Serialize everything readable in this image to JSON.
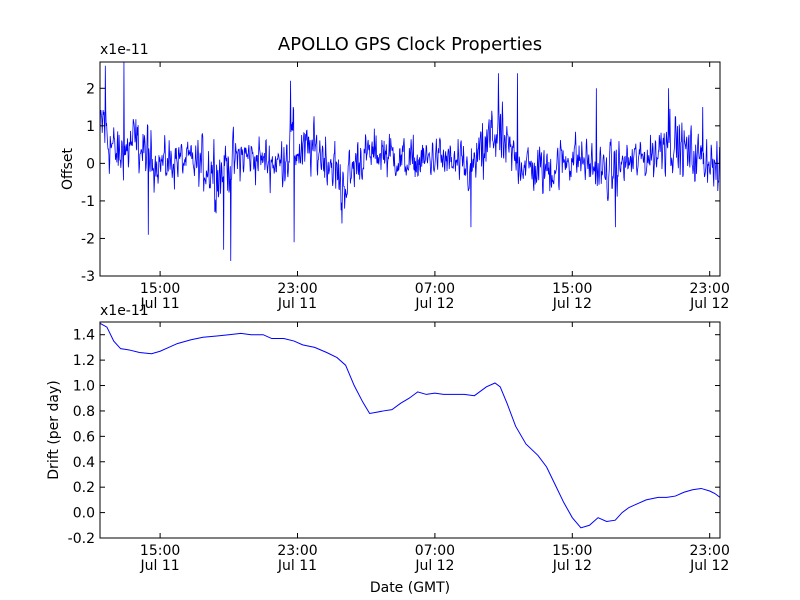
{
  "chart_data": [
    {
      "type": "line",
      "title": "APOLLO GPS Clock Properties",
      "ylabel": "Offset",
      "xlabel": "",
      "scale_label": "x1e-11",
      "x_unit": "hours since Jul 11 00:00 GMT",
      "xlim": [
        11.5,
        47.6
      ],
      "ylim": [
        -3,
        2.7
      ],
      "yticks": [
        "2",
        "1",
        "0",
        "-1",
        "-2",
        "-3"
      ],
      "ytick_values": [
        2,
        1,
        0,
        -1,
        -2,
        -3
      ],
      "xticks": [
        {
          "value": 15,
          "time": "15:00",
          "date": "Jul 11"
        },
        {
          "value": 23,
          "time": "23:00",
          "date": "Jul 11"
        },
        {
          "value": 31,
          "time": "07:00",
          "date": "Jul 12"
        },
        {
          "value": 39,
          "time": "15:00",
          "date": "Jul 12"
        },
        {
          "value": 47,
          "time": "23:00",
          "date": "Jul 12"
        }
      ],
      "color": "#0000ff",
      "noise_series": true,
      "envelope": {
        "x": [
          11.5,
          11.7,
          12.0,
          12.5,
          13.0,
          13.5,
          14.0,
          15.0,
          16.0,
          17.0,
          18.0,
          18.5,
          19.0,
          20.0,
          21.0,
          22.0,
          22.7,
          23.0,
          24.0,
          25.0,
          25.5,
          26.0,
          26.5,
          27.0,
          28.0,
          29.0,
          30.0,
          31.0,
          32.0,
          33.0,
          34.0,
          34.5,
          35.0,
          35.5,
          36.0,
          37.0,
          38.0,
          39.0,
          40.0,
          41.0,
          42.0,
          43.0,
          44.0,
          44.5,
          45.0,
          46.0,
          47.0,
          47.6
        ],
        "y": [
          0.6,
          1.2,
          0.6,
          0.2,
          0.3,
          0.6,
          0.3,
          0.0,
          0.1,
          0.0,
          -0.1,
          -0.3,
          0.0,
          0.2,
          0.1,
          0.0,
          0.6,
          0.3,
          0.4,
          0.0,
          -0.6,
          -0.4,
          0.1,
          0.2,
          0.3,
          0.1,
          0.0,
          0.2,
          0.0,
          -0.2,
          0.4,
          0.9,
          0.5,
          0.2,
          0.0,
          -0.2,
          -0.1,
          0.2,
          0.0,
          -0.3,
          0.0,
          0.1,
          0.3,
          0.9,
          0.5,
          0.2,
          0.1,
          -0.4
        ],
        "noise": [
          0.6,
          0.8,
          0.6,
          0.5,
          0.5,
          0.5,
          0.5,
          0.4,
          0.45,
          0.4,
          0.6,
          0.7,
          0.5,
          0.4,
          0.4,
          0.4,
          0.7,
          0.5,
          0.45,
          0.5,
          0.6,
          0.5,
          0.45,
          0.4,
          0.4,
          0.4,
          0.4,
          0.4,
          0.4,
          0.45,
          0.6,
          0.7,
          0.5,
          0.45,
          0.4,
          0.45,
          0.5,
          0.45,
          0.4,
          0.5,
          0.4,
          0.4,
          0.5,
          0.7,
          0.5,
          0.45,
          0.4,
          0.45
        ]
      },
      "spikes": [
        {
          "x": 11.8,
          "y": 2.6
        },
        {
          "x": 12.9,
          "y": 2.7
        },
        {
          "x": 14.3,
          "y": -1.9
        },
        {
          "x": 18.7,
          "y": -2.3
        },
        {
          "x": 19.1,
          "y": -2.6
        },
        {
          "x": 22.6,
          "y": 2.2
        },
        {
          "x": 22.8,
          "y": -2.1
        },
        {
          "x": 25.6,
          "y": -1.6
        },
        {
          "x": 34.7,
          "y": 2.4
        },
        {
          "x": 33.1,
          "y": -1.7
        },
        {
          "x": 35.8,
          "y": 2.4
        },
        {
          "x": 40.4,
          "y": 2.0
        },
        {
          "x": 41.5,
          "y": -1.7
        },
        {
          "x": 44.6,
          "y": 2.0
        },
        {
          "x": 46.6,
          "y": 1.5
        }
      ]
    },
    {
      "type": "line",
      "title": "",
      "ylabel": "Drift (per day)",
      "xlabel": "Date (GMT)",
      "scale_label": "x1e-11",
      "x_unit": "hours since Jul 11 00:00 GMT",
      "xlim": [
        11.5,
        47.6
      ],
      "ylim": [
        -0.2,
        1.5
      ],
      "yticks": [
        "1.4",
        "1.2",
        "1.0",
        "0.8",
        "0.6",
        "0.4",
        "0.2",
        "0.0",
        "-0.2"
      ],
      "ytick_values": [
        1.4,
        1.2,
        1.0,
        0.8,
        0.6,
        0.4,
        0.2,
        0.0,
        -0.2
      ],
      "xticks": [
        {
          "value": 15,
          "time": "15:00",
          "date": "Jul 11"
        },
        {
          "value": 23,
          "time": "23:00",
          "date": "Jul 11"
        },
        {
          "value": 31,
          "time": "07:00",
          "date": "Jul 12"
        },
        {
          "value": 39,
          "time": "15:00",
          "date": "Jul 12"
        },
        {
          "value": 47,
          "time": "23:00",
          "date": "Jul 12"
        }
      ],
      "color": "#0000ff",
      "x": [
        11.5,
        11.9,
        12.3,
        12.7,
        13.2,
        13.8,
        14.5,
        15.0,
        15.5,
        16.0,
        16.8,
        17.5,
        18.3,
        19.0,
        19.7,
        20.3,
        21.0,
        21.5,
        22.2,
        22.8,
        23.3,
        24.0,
        24.7,
        25.3,
        25.8,
        26.3,
        26.8,
        27.2,
        27.6,
        28.0,
        28.5,
        29.0,
        29.5,
        30.0,
        30.5,
        31.0,
        31.5,
        32.0,
        32.7,
        33.3,
        34.0,
        34.5,
        34.8,
        35.2,
        35.7,
        36.3,
        37.0,
        37.5,
        38.0,
        38.5,
        39.0,
        39.5,
        40.0,
        40.5,
        41.0,
        41.5,
        41.9,
        42.3,
        42.8,
        43.3,
        44.0,
        44.5,
        45.0,
        45.5,
        46.0,
        46.5,
        47.0,
        47.3,
        47.6
      ],
      "y": [
        1.49,
        1.46,
        1.35,
        1.29,
        1.28,
        1.26,
        1.25,
        1.27,
        1.3,
        1.33,
        1.36,
        1.38,
        1.39,
        1.4,
        1.41,
        1.4,
        1.4,
        1.37,
        1.37,
        1.35,
        1.32,
        1.3,
        1.26,
        1.22,
        1.16,
        1.0,
        0.87,
        0.78,
        0.79,
        0.8,
        0.81,
        0.86,
        0.9,
        0.95,
        0.93,
        0.94,
        0.93,
        0.93,
        0.93,
        0.92,
        0.99,
        1.02,
        0.99,
        0.86,
        0.68,
        0.54,
        0.45,
        0.36,
        0.22,
        0.08,
        -0.04,
        -0.12,
        -0.1,
        -0.04,
        -0.07,
        -0.06,
        0.0,
        0.04,
        0.07,
        0.1,
        0.12,
        0.12,
        0.13,
        0.16,
        0.18,
        0.19,
        0.17,
        0.15,
        0.12
      ]
    }
  ]
}
